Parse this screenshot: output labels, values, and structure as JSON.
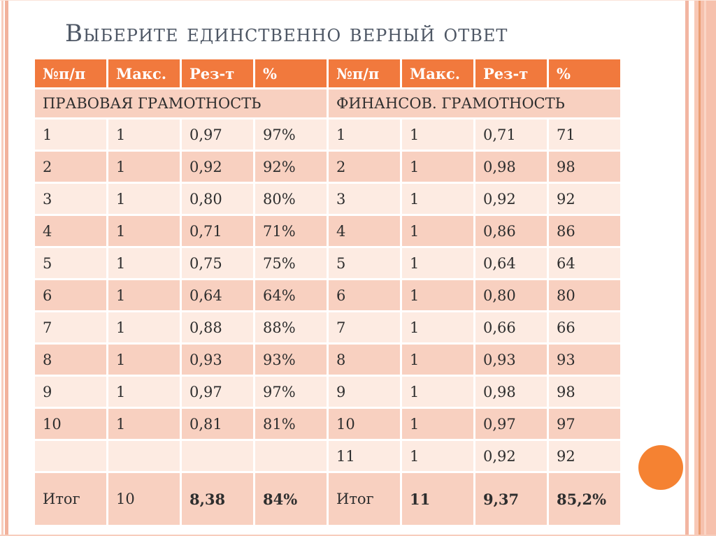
{
  "title": "Выберите единственно верный ответ",
  "table": {
    "column_headers": [
      "№п/п",
      "Макс.",
      "Рез-т",
      "%",
      "№п/п",
      "Макс.",
      "Рез-т",
      "%"
    ],
    "sections": [
      {
        "label": "ПРАВОВАЯ ГРАМОТНОСТЬ",
        "span": 4
      },
      {
        "label": "ФИНАНСОВ. ГРАМОТНОСТЬ",
        "span": 4
      }
    ],
    "rows": [
      {
        "cells": [
          "1",
          "1",
          "0,97",
          "97%",
          "1",
          "1",
          "0,71",
          "71"
        ]
      },
      {
        "cells": [
          "2",
          "1",
          "0,92",
          "92%",
          "2",
          "1",
          "0,98",
          "98"
        ]
      },
      {
        "cells": [
          "3",
          "1",
          "0,80",
          "80%",
          "3",
          "1",
          "0,92",
          "92"
        ]
      },
      {
        "cells": [
          "4",
          "1",
          "0,71",
          "71%",
          "4",
          "1",
          "0,86",
          "86"
        ]
      },
      {
        "cells": [
          "5",
          "1",
          "0,75",
          "75%",
          "5",
          "1",
          "0,64",
          "64"
        ]
      },
      {
        "cells": [
          "6",
          "1",
          "0,64",
          "64%",
          "6",
          "1",
          "0,80",
          "80"
        ]
      },
      {
        "cells": [
          "7",
          "1",
          "0,88",
          "88%",
          "7",
          "1",
          "0,66",
          "66"
        ]
      },
      {
        "cells": [
          "8",
          "1",
          "0,93",
          "93%",
          "8",
          "1",
          "0,93",
          "93"
        ]
      },
      {
        "cells": [
          "9",
          "1",
          "0,97",
          "97%",
          "9",
          "1",
          "0,98",
          "98"
        ]
      },
      {
        "cells": [
          "10",
          "1",
          "0,81",
          "81%",
          "10",
          "1",
          "0,97",
          "97"
        ]
      },
      {
        "cells": [
          "",
          "",
          "",
          "",
          "11",
          "1",
          "0,92",
          "92"
        ]
      },
      {
        "cells": [
          "Итог",
          "10",
          "8,38",
          "84%",
          "Итог",
          "11",
          "9,37",
          "85,2%"
        ],
        "bold": [
          false,
          false,
          true,
          true,
          false,
          true,
          true,
          true
        ],
        "total": true
      }
    ]
  },
  "colors": {
    "header_bg": "#F1793D",
    "header_text": "#FFFFFF",
    "row_light": "#FDEBE2",
    "row_dark": "#F8D0C0",
    "body_text": "#2E2E2E",
    "title_text": "#4E5765",
    "accent_circle": "#F58232",
    "side_stripe_pink": "#F2B29C"
  }
}
